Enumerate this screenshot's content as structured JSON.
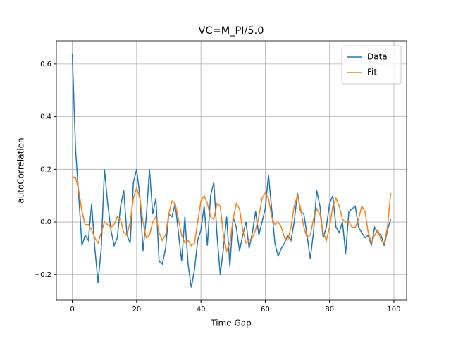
{
  "chart_data": {
    "type": "line",
    "title": "VC=M_PI/5.0",
    "xlabel": "Time Gap",
    "ylabel": "autoCorrelation",
    "x": [
      0,
      1,
      2,
      3,
      4,
      5,
      6,
      7,
      8,
      9,
      10,
      11,
      12,
      13,
      14,
      15,
      16,
      17,
      18,
      19,
      20,
      21,
      22,
      23,
      24,
      25,
      26,
      27,
      28,
      29,
      30,
      31,
      32,
      33,
      34,
      35,
      36,
      37,
      38,
      39,
      40,
      41,
      42,
      43,
      44,
      45,
      46,
      47,
      48,
      49,
      50,
      51,
      52,
      53,
      54,
      55,
      56,
      57,
      58,
      59,
      60,
      61,
      62,
      63,
      64,
      65,
      66,
      67,
      68,
      69,
      70,
      71,
      72,
      73,
      74,
      75,
      76,
      77,
      78,
      79,
      80,
      81,
      82,
      83,
      84,
      85,
      86,
      87,
      88,
      89,
      90,
      91,
      92,
      93,
      94,
      95,
      96,
      97,
      98,
      99
    ],
    "series": [
      {
        "name": "Data",
        "color": "#1f77b4",
        "values": [
          0.64,
          0.28,
          0.1,
          -0.09,
          -0.05,
          -0.07,
          0.07,
          -0.1,
          -0.23,
          -0.1,
          0.2,
          0.07,
          -0.03,
          -0.09,
          -0.06,
          0.06,
          0.12,
          -0.05,
          -0.08,
          0.15,
          0.2,
          0.1,
          -0.11,
          0.02,
          0.2,
          0.03,
          0.09,
          -0.15,
          -0.16,
          -0.1,
          0.03,
          0.02,
          0.07,
          -0.04,
          -0.15,
          0.02,
          -0.16,
          -0.25,
          -0.18,
          -0.07,
          -0.03,
          0.06,
          -0.09,
          0.1,
          0.15,
          -0.05,
          -0.2,
          -0.1,
          0.02,
          -0.17,
          0.02,
          -0.02,
          -0.11,
          -0.05,
          0.0,
          -0.1,
          -0.04,
          0.04,
          -0.05,
          0.0,
          0.05,
          0.18,
          0.05,
          -0.08,
          -0.13,
          -0.1,
          -0.08,
          -0.05,
          -0.07,
          0.0,
          0.11,
          0.04,
          0.03,
          -0.05,
          -0.14,
          -0.04,
          0.12,
          0.06,
          -0.06,
          -0.02,
          0.07,
          0.1,
          -0.02,
          -0.04,
          0.0,
          -0.12,
          0.04,
          0.05,
          0.06,
          -0.02,
          -0.04,
          -0.06,
          -0.05,
          -0.09,
          -0.02,
          -0.04,
          -0.05,
          -0.09,
          -0.03,
          0.01
        ]
      },
      {
        "name": "Fit",
        "color": "#ff7f0e",
        "values": [
          0.17,
          0.17,
          0.12,
          0.04,
          -0.01,
          -0.01,
          -0.03,
          -0.06,
          -0.08,
          -0.04,
          0.0,
          -0.01,
          -0.02,
          -0.01,
          0.02,
          0.01,
          -0.04,
          -0.05,
          0.0,
          0.09,
          0.13,
          0.09,
          0.0,
          -0.06,
          -0.05,
          0.0,
          0.02,
          -0.04,
          -0.07,
          -0.05,
          0.03,
          0.08,
          0.07,
          0.01,
          -0.05,
          -0.08,
          -0.07,
          -0.09,
          -0.08,
          0.0,
          0.08,
          0.1,
          0.07,
          0.02,
          0.01,
          0.07,
          0.06,
          -0.05,
          -0.11,
          -0.08,
          0.01,
          0.07,
          0.05,
          -0.03,
          -0.08,
          -0.07,
          -0.06,
          -0.03,
          0.02,
          0.09,
          0.11,
          0.09,
          0.02,
          -0.01,
          0.0,
          -0.02,
          -0.06,
          -0.07,
          -0.02,
          0.06,
          0.1,
          0.05,
          -0.02,
          -0.06,
          -0.05,
          0.01,
          0.05,
          0.03,
          -0.04,
          -0.07,
          -0.02,
          0.06,
          0.09,
          0.06,
          0.01,
          0.0,
          0.0,
          -0.02,
          -0.02,
          0.01,
          0.06,
          0.04,
          -0.04,
          -0.08,
          -0.05,
          -0.03,
          -0.07,
          -0.08,
          -0.02,
          0.11
        ]
      }
    ],
    "xlim": [
      -4.95,
      103.95
    ],
    "ylim": [
      -0.297,
      0.688
    ],
    "xticks": [
      0,
      20,
      40,
      60,
      80,
      100
    ],
    "yticks": [
      {
        "value": -0.2,
        "label": "−0.2"
      },
      {
        "value": 0,
        "label": "0.0"
      },
      0.2,
      0.4,
      0.6
    ],
    "grid": true,
    "legend": "upper right"
  }
}
